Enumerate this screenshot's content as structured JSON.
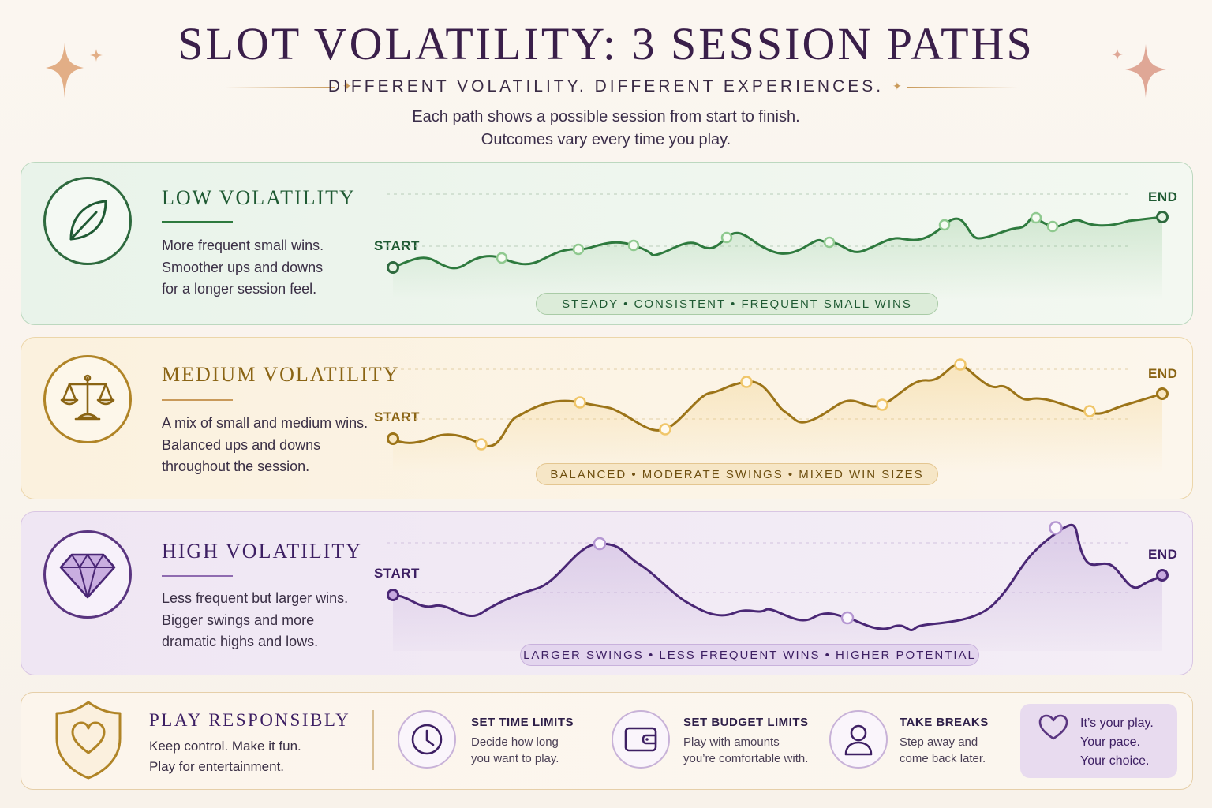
{
  "header": {
    "title": "SLOT VOLATILITY: 3 SESSION PATHS",
    "subtitle": "DIFFERENT VOLATILITY. DIFFERENT EXPERIENCES.",
    "intro_line1": "Each path shows a possible session from start to finish.",
    "intro_line2": "Outcomes vary every time you play."
  },
  "panels": [
    {
      "heading": "LOW VOLATILITY",
      "icon": "leaf-icon",
      "desc_lines": [
        "More frequent small wins.",
        "Smoother ups and downs",
        "for a longer session feel."
      ],
      "start_label": "START",
      "end_label": "END",
      "tag": "STEADY • CONSISTENT • FREQUENT SMALL WINS",
      "color": "#1f5a33",
      "line_color": "#2e7a3e"
    },
    {
      "heading": "MEDIUM VOLATILITY",
      "icon": "balance-scale-icon",
      "desc_lines": [
        "A mix of small and medium wins.",
        "Balanced ups and downs",
        "throughout the session."
      ],
      "start_label": "START",
      "end_label": "END",
      "tag": "BALANCED • MODERATE SWINGS • MIXED WIN SIZES",
      "color": "#8a6414",
      "line_color": "#9c7418"
    },
    {
      "heading": "HIGH VOLATILITY",
      "icon": "diamond-icon",
      "desc_lines": [
        "Less frequent but larger wins.",
        "Bigger swings and more",
        "dramatic highs and lows."
      ],
      "start_label": "START",
      "end_label": "END",
      "tag": "LARGER SWINGS • LESS FREQUENT WINS • HIGHER POTENTIAL",
      "color": "#3d1f63",
      "line_color": "#4a2775"
    }
  ],
  "footer": {
    "heading": "PLAY RESPONSIBLY",
    "line1": "Keep control. Make it fun.",
    "line2": "Play for entertainment.",
    "tips": [
      {
        "icon": "clock-icon",
        "title": "SET TIME LIMITS",
        "line1": "Decide how long",
        "line2": "you want to play."
      },
      {
        "icon": "wallet-icon",
        "title": "SET BUDGET LIMITS",
        "line1": "Play with amounts",
        "line2": "you’re comfortable with."
      },
      {
        "icon": "person-icon",
        "title": "TAKE BREAKS",
        "line1": "Step away and",
        "line2": "come back later."
      }
    ],
    "callout": {
      "line1": "It’s your play.",
      "line2": "Your pace.",
      "line3": "Your choice."
    }
  },
  "colors": {
    "title": "#3a1f4a",
    "accent_gold": "#c99a5a",
    "low": "#2e7a3e",
    "medium": "#9c7418",
    "high": "#4a2775"
  }
}
